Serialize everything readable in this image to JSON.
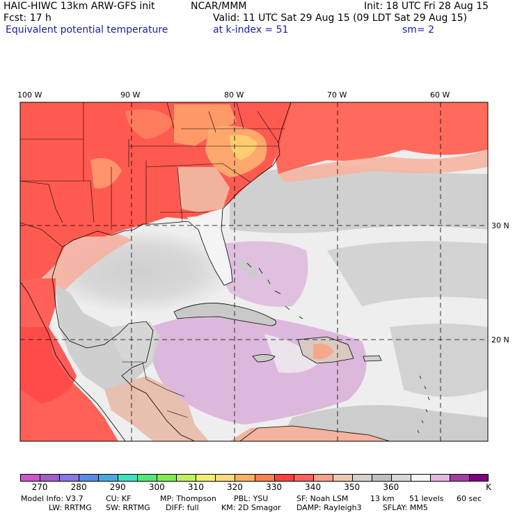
{
  "header": {
    "model": "HAIC-HIWC 13km ARW-GFS init",
    "org": "NCAR/MMM",
    "init": "Init: 18 UTC Fri 28 Aug 15",
    "fcst": "Fcst:   17 h",
    "valid": "Valid: 11 UTC Sat 29 Aug 15 (09 LDT Sat 29 Aug 15)",
    "field": "Equivalent potential temperature",
    "level": "at k-index =  51",
    "smooth": "sm= 2"
  },
  "map": {
    "lon_labels": [
      "100 W",
      "90 W",
      "80 W",
      "70 W",
      "60 W"
    ],
    "lat_labels": [
      "30 N",
      "20 N"
    ]
  },
  "colorbar": {
    "unit": "K",
    "colors": [
      "#cc55cc",
      "#a060c8",
      "#8a78e6",
      "#5a8ce6",
      "#4ca8e0",
      "#40e0c0",
      "#50e878",
      "#80ec50",
      "#c0f060",
      "#f0f070",
      "#ffd880",
      "#ffb060",
      "#ff8050",
      "#ff4040",
      "#ff6060",
      "#f8a088",
      "#f0c8b0",
      "#d8d0cc",
      "#c0c0c0",
      "#d8d8d8",
      "#f4f4f4",
      "#e0b8e0",
      "#a040a0",
      "#800080"
    ],
    "labels": [
      "270",
      "280",
      "290",
      "300",
      "310",
      "320",
      "330",
      "340",
      "350",
      "360"
    ]
  },
  "footer": {
    "line1": [
      "Model Info: V3.7",
      "CU: KF",
      "MP: Thompson",
      "PBL: YSU",
      "SF: Noah LSM",
      "13 km",
      "51 levels",
      "60 sec"
    ],
    "line2": [
      "LW: RRTMG",
      "SW: RRTMG",
      "DIFF: full",
      "KM: 2D Smagor",
      "DAMP: Rayleigh3",
      "SFLAY: MM5"
    ]
  }
}
